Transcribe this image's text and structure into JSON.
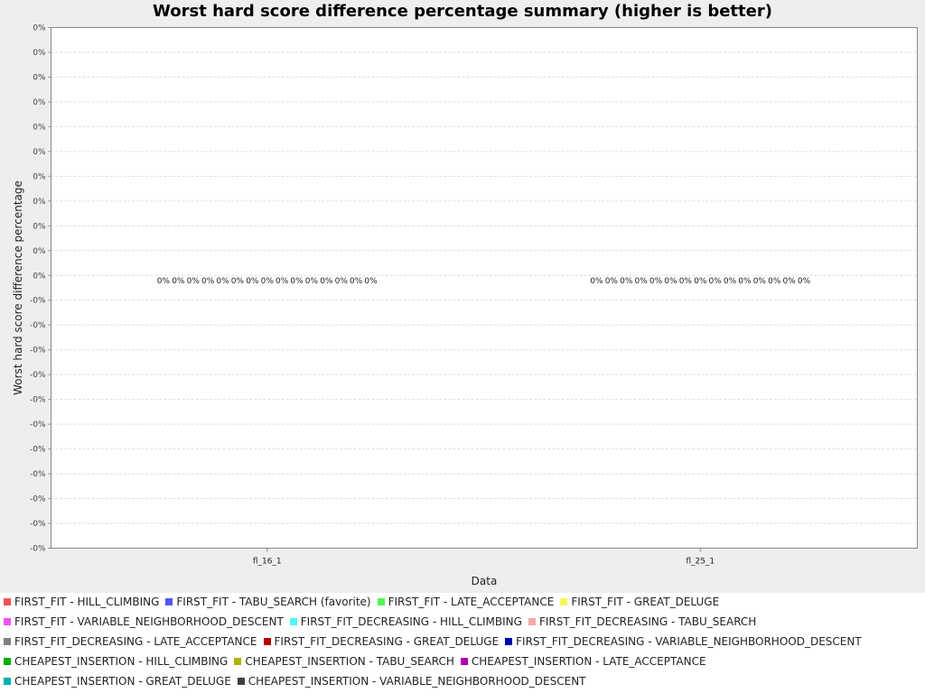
{
  "chart_data": {
    "type": "bar",
    "title": "Worst hard score difference percentage summary (higher is better)",
    "xlabel": "Data",
    "ylabel": "Worst hard score difference percentage",
    "ylim": [
      -0.5,
      0.5
    ],
    "grid": true,
    "legend_position": "bottom",
    "categories": [
      "fl_16_1",
      "fl_25_1"
    ],
    "y_tick_labels": [
      "0%",
      "0%",
      "0%",
      "0%",
      "0%",
      "0%",
      "0%",
      "0%",
      "0%",
      "0%",
      "0%",
      "-0%",
      "-0%",
      "-0%",
      "-0%",
      "-0%",
      "-0%",
      "-0%",
      "-0%",
      "-0%",
      "-0%",
      "-0%"
    ],
    "bar_value_label": "0%",
    "series": [
      {
        "name": "FIRST_FIT - HILL_CLIMBING",
        "color": "#f05454",
        "values": [
          0,
          0
        ]
      },
      {
        "name": "FIRST_FIT - TABU_SEARCH (favorite)",
        "color": "#5454f5",
        "values": [
          0,
          0
        ]
      },
      {
        "name": "FIRST_FIT - LATE_ACCEPTANCE",
        "color": "#54f554",
        "values": [
          0,
          0
        ]
      },
      {
        "name": "FIRST_FIT - GREAT_DELUGE",
        "color": "#f5f554",
        "values": [
          0,
          0
        ]
      },
      {
        "name": "FIRST_FIT - VARIABLE_NEIGHBORHOOD_DESCENT",
        "color": "#f554f5",
        "values": [
          0,
          0
        ]
      },
      {
        "name": "FIRST_FIT_DECREASING - HILL_CLIMBING",
        "color": "#54f5f5",
        "values": [
          0,
          0
        ]
      },
      {
        "name": "FIRST_FIT_DECREASING - TABU_SEARCH",
        "color": "#f5a8a8",
        "values": [
          0,
          0
        ]
      },
      {
        "name": "FIRST_FIT_DECREASING - LATE_ACCEPTANCE",
        "color": "#808080",
        "values": [
          0,
          0
        ]
      },
      {
        "name": "FIRST_FIT_DECREASING - GREAT_DELUGE",
        "color": "#b00000",
        "values": [
          0,
          0
        ]
      },
      {
        "name": "FIRST_FIT_DECREASING - VARIABLE_NEIGHBORHOOD_DESCENT",
        "color": "#0000b0",
        "values": [
          0,
          0
        ]
      },
      {
        "name": "CHEAPEST_INSERTION - HILL_CLIMBING",
        "color": "#00b000",
        "values": [
          0,
          0
        ]
      },
      {
        "name": "CHEAPEST_INSERTION - TABU_SEARCH",
        "color": "#b0b000",
        "values": [
          0,
          0
        ]
      },
      {
        "name": "CHEAPEST_INSERTION - LATE_ACCEPTANCE",
        "color": "#b000b0",
        "values": [
          0,
          0
        ]
      },
      {
        "name": "CHEAPEST_INSERTION - GREAT_DELUGE",
        "color": "#00b0b0",
        "values": [
          0,
          0
        ]
      },
      {
        "name": "CHEAPEST_INSERTION - VARIABLE_NEIGHBORHOOD_DESCENT",
        "color": "#404040",
        "values": [
          0,
          0
        ]
      }
    ]
  }
}
